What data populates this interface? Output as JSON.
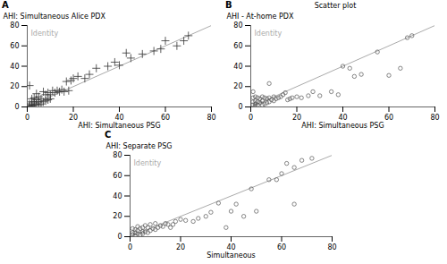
{
  "chart_data": [
    {
      "type": "scatter",
      "panel_label": "A",
      "xlabel": "AHI: Simultaneous PSG",
      "ylabel": "AHI: Simultaneous Alice PDX",
      "xlim": [
        0,
        80
      ],
      "ylim": [
        0,
        80
      ],
      "xticks": [
        0,
        20,
        40,
        60,
        80
      ],
      "yticks": [
        0,
        20,
        40,
        60,
        80
      ],
      "x": [
        1,
        1,
        1,
        2,
        2,
        2,
        2,
        3,
        3,
        3,
        4,
        4,
        4,
        5,
        5,
        5,
        6,
        6,
        7,
        7,
        8,
        8,
        9,
        9,
        10,
        10,
        11,
        12,
        13,
        14,
        15,
        16,
        17,
        18,
        19,
        20,
        22,
        25,
        27,
        30,
        35,
        38,
        40,
        43,
        45,
        50,
        55,
        58,
        60,
        65,
        68,
        70
      ],
      "values": [
        1,
        3,
        21,
        1,
        2,
        5,
        8,
        2,
        5,
        9,
        3,
        7,
        13,
        2,
        5,
        10,
        3,
        8,
        5,
        15,
        6,
        12,
        7,
        14,
        8,
        12,
        16,
        14,
        16,
        15,
        17,
        15,
        25,
        16,
        26,
        28,
        30,
        28,
        32,
        38,
        40,
        44,
        41,
        53,
        48,
        52,
        55,
        57,
        65,
        60,
        65,
        70
      ],
      "marker": "plus",
      "color": "#333333",
      "lines": [
        {
          "label": "Identity",
          "x": [
            0,
            80
          ],
          "y": [
            0,
            80
          ],
          "color": "#aaaaaa"
        }
      ]
    },
    {
      "type": "scatter",
      "panel_label": "B",
      "title": "Scatter plot",
      "xlabel": "AHI: Simultaneous PSG",
      "ylabel": "AHI - At-home PDX",
      "xlim": [
        0,
        80
      ],
      "ylim": [
        0,
        80
      ],
      "xticks": [
        0,
        20,
        40,
        60,
        80
      ],
      "yticks": [
        0,
        20,
        40,
        60,
        80
      ],
      "x": [
        1,
        1,
        1,
        1,
        2,
        2,
        2,
        2,
        3,
        3,
        3,
        4,
        4,
        5,
        5,
        5,
        6,
        6,
        7,
        7,
        8,
        8,
        8,
        9,
        10,
        10,
        11,
        12,
        13,
        14,
        15,
        16,
        17,
        18,
        20,
        22,
        25,
        27,
        30,
        35,
        38,
        40,
        43,
        45,
        48,
        55,
        60,
        65,
        68,
        70
      ],
      "values": [
        2,
        5,
        9,
        15,
        1,
        3,
        6,
        10,
        2,
        5,
        9,
        4,
        8,
        2,
        6,
        10,
        3,
        9,
        4,
        8,
        5,
        9,
        23,
        7,
        6,
        10,
        8,
        9,
        10,
        12,
        14,
        7,
        8,
        9,
        10,
        9,
        11,
        15,
        11,
        15,
        12,
        40,
        38,
        30,
        32,
        54,
        31,
        38,
        68,
        70
      ],
      "marker": "circle",
      "color": "#555555",
      "lines": [
        {
          "label": "Identity",
          "x": [
            0,
            80
          ],
          "y": [
            0,
            80
          ],
          "color": "#aaaaaa"
        }
      ]
    },
    {
      "type": "scatter",
      "panel_label": "C",
      "xlabel": "Simultaneous",
      "ylabel": "AHI: Separate PSG",
      "xlim": [
        0,
        80
      ],
      "ylim": [
        0,
        80
      ],
      "xticks": [
        0,
        20,
        40,
        60,
        80
      ],
      "yticks": [
        0,
        20,
        40,
        60,
        80
      ],
      "x": [
        1,
        1,
        1,
        2,
        2,
        2,
        3,
        3,
        3,
        4,
        4,
        5,
        5,
        5,
        6,
        6,
        7,
        7,
        8,
        8,
        9,
        10,
        10,
        11,
        12,
        13,
        14,
        15,
        16,
        17,
        18,
        20,
        22,
        25,
        27,
        30,
        32,
        35,
        38,
        40,
        42,
        45,
        48,
        50,
        55,
        58,
        60,
        62,
        65,
        65,
        68,
        72
      ],
      "values": [
        2,
        4,
        8,
        1,
        4,
        7,
        3,
        6,
        10,
        2,
        8,
        3,
        5,
        9,
        5,
        11,
        4,
        9,
        6,
        12,
        8,
        7,
        13,
        9,
        11,
        10,
        13,
        12,
        9,
        12,
        15,
        17,
        16,
        15,
        18,
        20,
        24,
        33,
        9,
        25,
        32,
        20,
        47,
        25,
        56,
        56,
        62,
        72,
        32,
        68,
        75,
        77
      ],
      "marker": "circle",
      "color": "#555555",
      "lines": [
        {
          "label": "Identity",
          "x": [
            0,
            80
          ],
          "y": [
            0,
            80
          ],
          "color": "#aaaaaa"
        }
      ]
    }
  ]
}
